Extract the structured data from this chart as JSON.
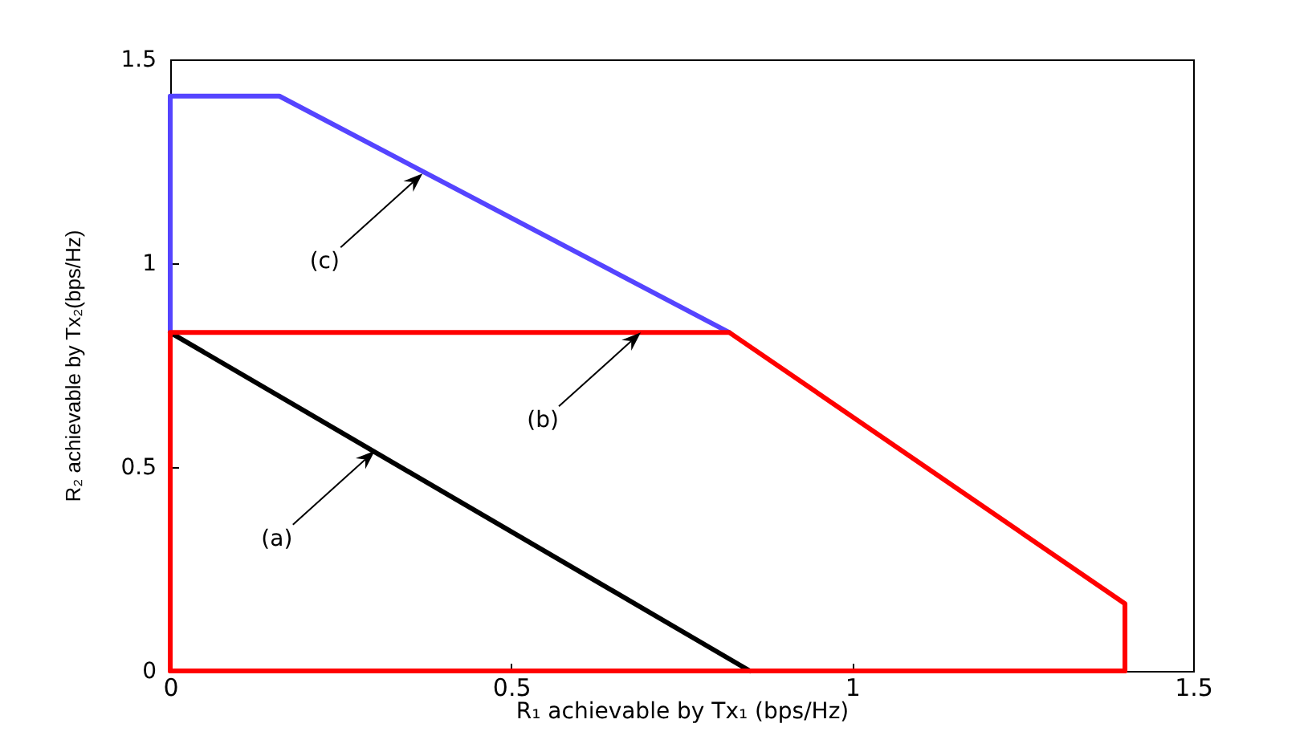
{
  "chart_data": {
    "type": "line",
    "xlabel": "R₁ achievable by Tx₁ (bps/Hz)",
    "ylabel": "R₂ achievable by Tx₂(bps/Hz)",
    "xlim": [
      0,
      1.5
    ],
    "ylim": [
      0,
      1.5
    ],
    "xticks": [
      0,
      0.5,
      1,
      1.5
    ],
    "yticks": [
      0,
      0.5,
      1,
      1.5
    ],
    "series": [
      {
        "color": "#000000",
        "x": [
          0,
          0.85
        ],
        "values": [
          0.83,
          0
        ]
      },
      {
        "color": "#5544ff",
        "x": [
          0,
          0,
          0.16,
          0.82
        ],
        "values": [
          0.83,
          1.41,
          1.41,
          0.83
        ]
      },
      {
        "color": "#ff0000",
        "x": [
          0,
          0,
          0.82,
          1.4,
          1.4
        ],
        "values": [
          0,
          0.83,
          0.83,
          0.165,
          0
        ]
      },
      {
        "color": "#ff0000",
        "x": [
          0,
          1.4
        ],
        "values": [
          0,
          0
        ]
      }
    ],
    "annotations": [
      {
        "text": "(a)",
        "x": 0.3,
        "y": 0.54
      },
      {
        "text": "(b)",
        "x": 0.69,
        "y": 0.83
      },
      {
        "text": "(c)",
        "x": 0.37,
        "y": 1.22
      }
    ]
  }
}
